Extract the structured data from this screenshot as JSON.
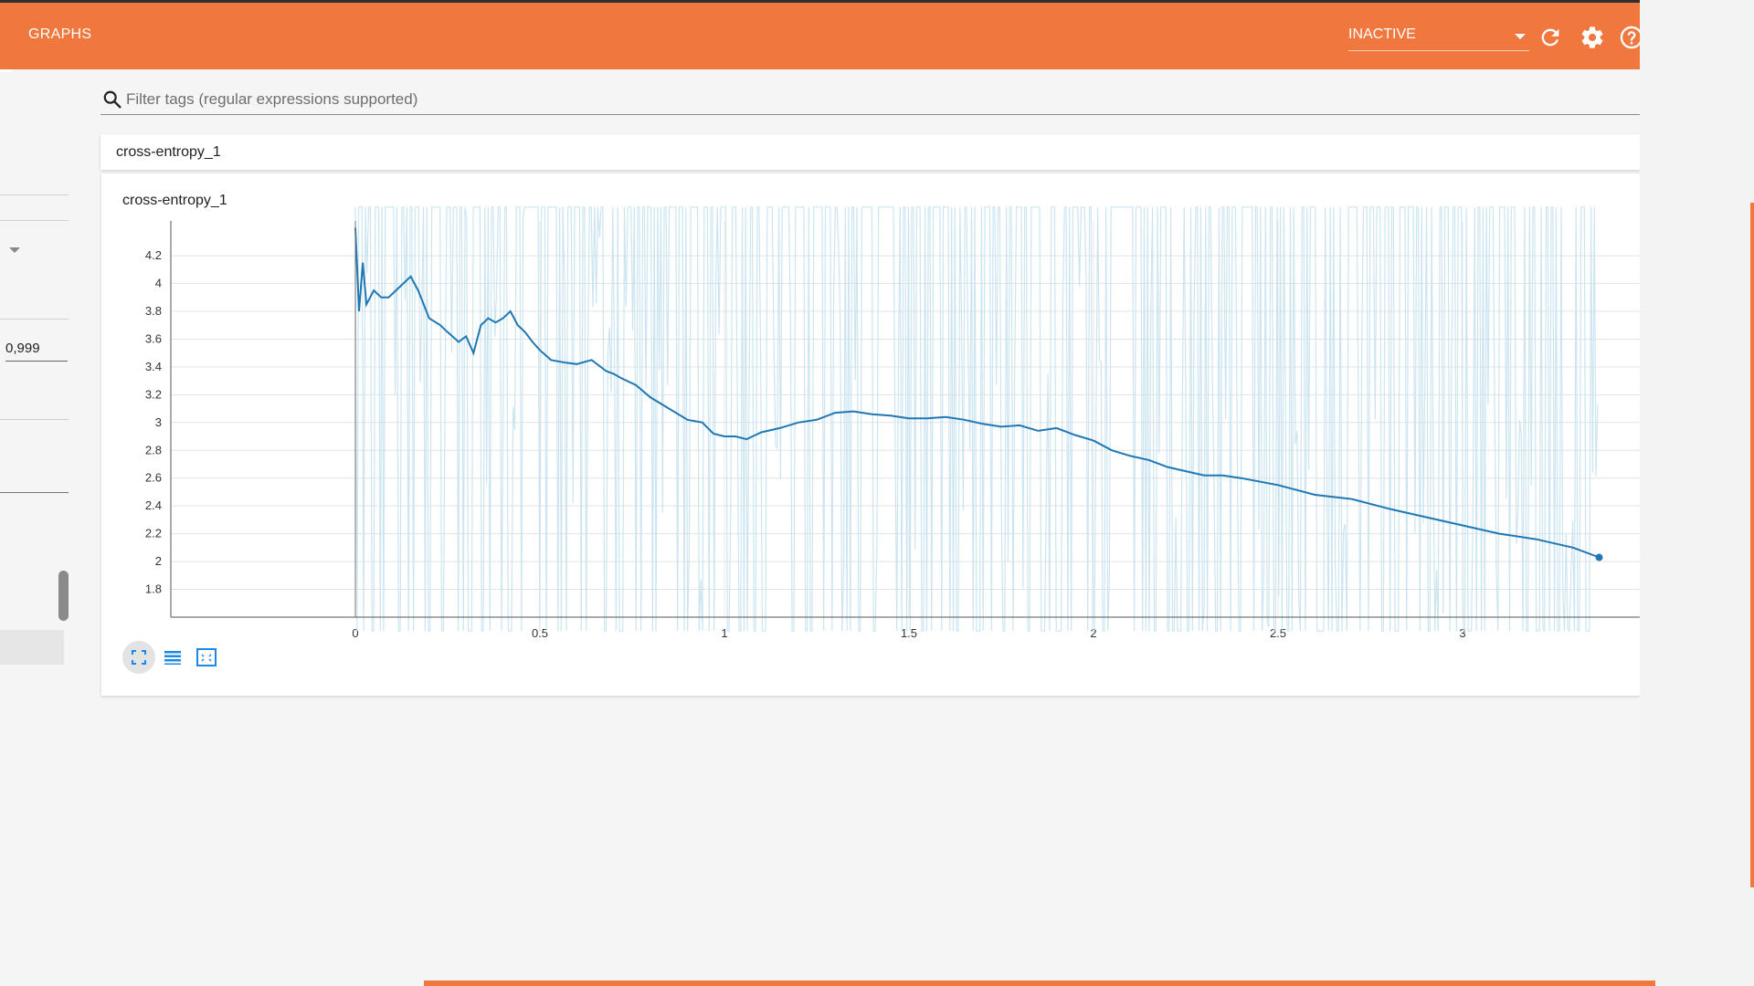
{
  "header": {
    "tab_label": "GRAPHS",
    "run_selector": "INACTIVE",
    "icons": [
      "reload-icon",
      "gear-icon",
      "help-icon"
    ]
  },
  "sidebar": {
    "smoothing_value": "0,999"
  },
  "search": {
    "placeholder": "Filter tags (regular expressions supported)"
  },
  "category": {
    "title": "cross-entropy_1"
  },
  "card": {
    "title": "cross-entropy_1"
  },
  "toolbar": {
    "icons": [
      "fit-domain-icon",
      "log-scale-icon",
      "zoom-icon"
    ]
  },
  "colors": {
    "accent": "#f0773e",
    "smoothed_line": "#1f77b4",
    "raw_line": "#c6e2ef"
  },
  "chart_data": {
    "type": "line",
    "title": "cross-entropy_1",
    "xlim": [
      -0.5,
      3.5
    ],
    "ylim": [
      1.6,
      4.45
    ],
    "xticks": [
      "0",
      "0.5",
      "1",
      "1.5",
      "2",
      "2.5",
      "3"
    ],
    "yticks": [
      "1.8",
      "2",
      "2.2",
      "2.4",
      "2.6",
      "2.8",
      "3",
      "3.2",
      "3.4",
      "3.6",
      "3.8",
      "4",
      "4.2"
    ],
    "grid": true,
    "series": [
      {
        "role": "smoothed",
        "x": [
          0,
          0.01,
          0.02,
          0.03,
          0.05,
          0.07,
          0.09,
          0.11,
          0.13,
          0.15,
          0.17,
          0.2,
          0.23,
          0.25,
          0.28,
          0.3,
          0.32,
          0.34,
          0.36,
          0.38,
          0.4,
          0.42,
          0.44,
          0.46,
          0.48,
          0.5,
          0.53,
          0.57,
          0.6,
          0.64,
          0.68,
          0.7,
          0.72,
          0.76,
          0.8,
          0.85,
          0.9,
          0.94,
          0.97,
          1.0,
          1.03,
          1.06,
          1.1,
          1.15,
          1.2,
          1.25,
          1.3,
          1.35,
          1.4,
          1.45,
          1.5,
          1.55,
          1.6,
          1.65,
          1.7,
          1.75,
          1.8,
          1.85,
          1.9,
          1.95,
          2.0,
          2.05,
          2.1,
          2.15,
          2.2,
          2.25,
          2.3,
          2.35,
          2.4,
          2.5,
          2.6,
          2.7,
          2.8,
          2.9,
          3.0,
          3.1,
          3.2,
          3.3,
          3.37
        ],
        "values": [
          4.4,
          3.8,
          4.15,
          3.85,
          3.95,
          3.9,
          3.9,
          3.95,
          4.0,
          4.05,
          3.95,
          3.75,
          3.7,
          3.65,
          3.58,
          3.62,
          3.5,
          3.7,
          3.75,
          3.72,
          3.75,
          3.8,
          3.7,
          3.65,
          3.58,
          3.52,
          3.45,
          3.43,
          3.42,
          3.45,
          3.37,
          3.35,
          3.32,
          3.27,
          3.18,
          3.1,
          3.02,
          3.0,
          2.92,
          2.9,
          2.9,
          2.88,
          2.93,
          2.96,
          3.0,
          3.02,
          3.07,
          3.08,
          3.06,
          3.05,
          3.03,
          3.03,
          3.04,
          3.02,
          2.99,
          2.97,
          2.98,
          2.94,
          2.96,
          2.91,
          2.87,
          2.8,
          2.76,
          2.73,
          2.68,
          2.65,
          2.62,
          2.62,
          2.6,
          2.55,
          2.48,
          2.45,
          2.38,
          2.32,
          2.26,
          2.2,
          2.16,
          2.1,
          2.03
        ]
      }
    ]
  }
}
